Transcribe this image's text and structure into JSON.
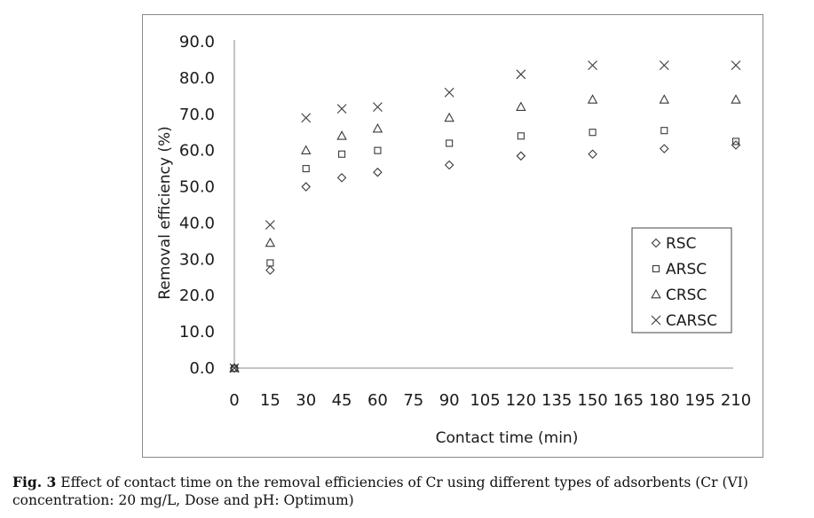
{
  "caption": {
    "label": "Fig. 3",
    "text": "Effect of contact time on the removal efficiencies of Cr using different types of adsorbents (Cr (VI) concentration: 20 mg/L, Dose and pH: Optimum)"
  },
  "chart_data": {
    "type": "scatter",
    "xlabel": "Contact time (min)",
    "ylabel": "Removal efficiency (%)",
    "x_ticks": [
      "0",
      "15",
      "30",
      "45",
      "60",
      "75",
      "90",
      "105",
      "120",
      "135",
      "150",
      "165",
      "180",
      "195",
      "210"
    ],
    "y_ticks": [
      "0.0",
      "10.0",
      "20.0",
      "30.0",
      "40.0",
      "50.0",
      "60.0",
      "70.0",
      "80.0",
      "90.0"
    ],
    "xlim": [
      0,
      210
    ],
    "ylim": [
      0,
      90
    ],
    "grid": false,
    "legend_position": "right",
    "series": [
      {
        "name": "RSC",
        "marker": "diamond",
        "x": [
          0,
          15,
          30,
          45,
          60,
          90,
          120,
          150,
          180,
          210
        ],
        "y": [
          0.0,
          27.0,
          50.0,
          52.5,
          54.0,
          56.0,
          58.5,
          59.0,
          60.5,
          61.5
        ]
      },
      {
        "name": "ARSC",
        "marker": "square",
        "x": [
          0,
          15,
          30,
          45,
          60,
          90,
          120,
          150,
          180,
          210
        ],
        "y": [
          0.0,
          29.0,
          55.0,
          59.0,
          60.0,
          62.0,
          64.0,
          65.0,
          65.5,
          62.5
        ]
      },
      {
        "name": "CRSC",
        "marker": "triangle",
        "x": [
          0,
          15,
          30,
          45,
          60,
          90,
          120,
          150,
          180,
          210
        ],
        "y": [
          0.0,
          34.5,
          60.0,
          64.0,
          66.0,
          69.0,
          72.0,
          74.0,
          74.0,
          74.0
        ]
      },
      {
        "name": "CARSC",
        "marker": "cross",
        "x": [
          0,
          15,
          30,
          45,
          60,
          90,
          120,
          150,
          180,
          210
        ],
        "y": [
          0.0,
          39.5,
          69.0,
          71.5,
          72.0,
          76.0,
          81.0,
          83.5,
          83.5,
          83.5
        ]
      }
    ],
    "marker_color": "#3a3a3a"
  }
}
